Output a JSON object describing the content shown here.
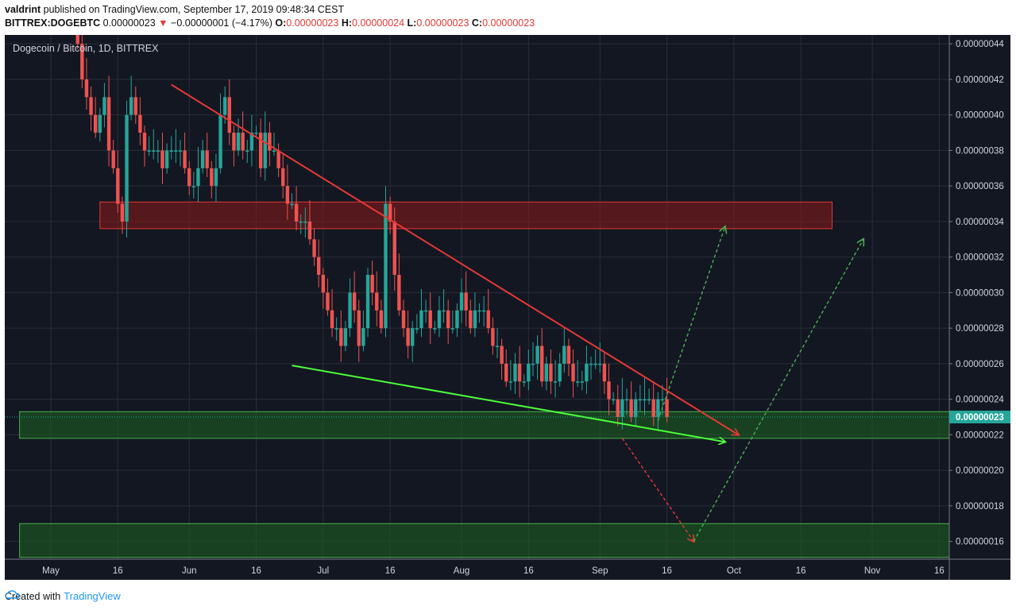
{
  "header": {
    "author": "valdrint",
    "published_text": "published on TradingView.com, September 17, 2019 09:48:34 CEST",
    "symbol": "BITTREX:DOGEBTC",
    "last": "0.00000023",
    "down_arrow": "▼",
    "change": "−0.00000001 (−4.17%)",
    "o_label": "O:",
    "o_value": "0.00000023",
    "h_label": "H:",
    "h_value": "0.00000024",
    "l_label": "L:",
    "l_value": "0.00000023",
    "c_label": "C:",
    "c_value": "0.00000023"
  },
  "chart_title": "Dogecoin / Bitcoin, 1D, BITTREX",
  "footer": {
    "created_with": "Created with",
    "brand": "TradingView",
    "brand_icon": "tradingview-cloud-icon"
  },
  "colors": {
    "background": "#131722",
    "up": "#26a69a",
    "down": "#ef5350",
    "resistance_zone": "#8b1a1a",
    "support_zone": "#1b5e20",
    "trend_red": "#e53935",
    "trend_green": "#4cff3a"
  },
  "chart_data": {
    "type": "candlestick",
    "symbol": "DOGEBTC",
    "timeframe": "1D",
    "exchange": "BITTREX",
    "x_ticks": [
      "May",
      "16",
      "Jun",
      "16",
      "Jul",
      "16",
      "Aug",
      "16",
      "Sep",
      "16",
      "Oct",
      "16",
      "Nov",
      "16"
    ],
    "x_tick_days": [
      0,
      15,
      31,
      46,
      61,
      76,
      92,
      107,
      123,
      138,
      153,
      168,
      184,
      199
    ],
    "y_ticks": [
      "0.00000044",
      "0.00000042",
      "0.00000040",
      "0.00000038",
      "0.00000036",
      "0.00000034",
      "0.00000032",
      "0.00000030",
      "0.00000028",
      "0.00000026",
      "0.00000024",
      "0.00000022",
      "0.00000020",
      "0.00000018",
      "0.00000016"
    ],
    "ylim": [
      1.5e-07,
      4.45e-07
    ],
    "last_price_label": "0.00000023",
    "last_price": 2.3e-07,
    "closes": [
      44,
      42,
      41,
      40,
      39,
      40,
      41,
      38,
      37,
      35,
      34,
      40,
      41,
      40,
      39,
      38,
      38,
      38,
      38,
      37,
      38,
      38,
      38,
      38,
      37,
      36,
      36,
      37,
      38,
      37,
      36,
      37,
      40,
      41,
      39,
      38,
      39,
      38,
      38,
      39,
      39,
      37,
      39,
      38,
      38,
      37,
      36,
      35,
      35,
      34,
      34,
      34,
      33,
      32,
      31,
      30,
      29,
      28,
      28,
      27,
      28,
      30,
      29,
      27,
      28,
      31,
      30,
      29,
      28,
      35,
      34,
      31,
      29,
      28,
      27,
      28,
      28,
      29,
      29,
      28,
      28,
      29,
      29,
      28,
      28,
      29,
      30,
      29,
      28,
      29,
      29,
      29,
      28,
      27,
      27,
      26,
      25,
      25,
      26,
      25,
      25,
      26,
      26,
      27,
      25,
      26,
      25,
      25,
      26,
      27,
      26,
      25,
      25,
      25,
      26,
      26,
      26,
      26,
      25,
      24,
      24,
      23,
      24,
      24,
      23,
      24,
      24,
      24,
      24,
      23,
      24,
      24,
      23
    ],
    "zones": [
      {
        "label": "resistance",
        "from": 3.36e-07,
        "to": 3.51e-07,
        "day_start": 11,
        "day_end": 175
      },
      {
        "label": "support",
        "from": 2.18e-07,
        "to": 2.33e-07,
        "day_start": -7,
        "day_end": 210
      },
      {
        "label": "support-lower",
        "from": 1.51e-07,
        "to": 1.7e-07,
        "day_start": -7,
        "day_end": 210
      }
    ],
    "trendlines": [
      {
        "name": "descending-resistance",
        "color": "red",
        "from": [
          27,
          4.17e-07
        ],
        "to": [
          154,
          2.2e-07
        ],
        "arrow": true
      },
      {
        "name": "descending-support",
        "color": "green",
        "from": [
          54,
          2.59e-07
        ],
        "to": [
          151,
          2.16e-07
        ],
        "arrow": true
      }
    ],
    "projections": [
      {
        "color": "green",
        "dashed": true,
        "points": [
          [
            136,
            2.28e-07
          ],
          [
            151,
            3.37e-07
          ]
        ]
      },
      {
        "color": "red",
        "dashed": true,
        "points": [
          [
            128,
            2.18e-07
          ],
          [
            144,
            1.6e-07
          ]
        ]
      },
      {
        "color": "green",
        "dashed": true,
        "points": [
          [
            144,
            1.6e-07
          ],
          [
            182,
            3.3e-07
          ]
        ]
      }
    ]
  }
}
